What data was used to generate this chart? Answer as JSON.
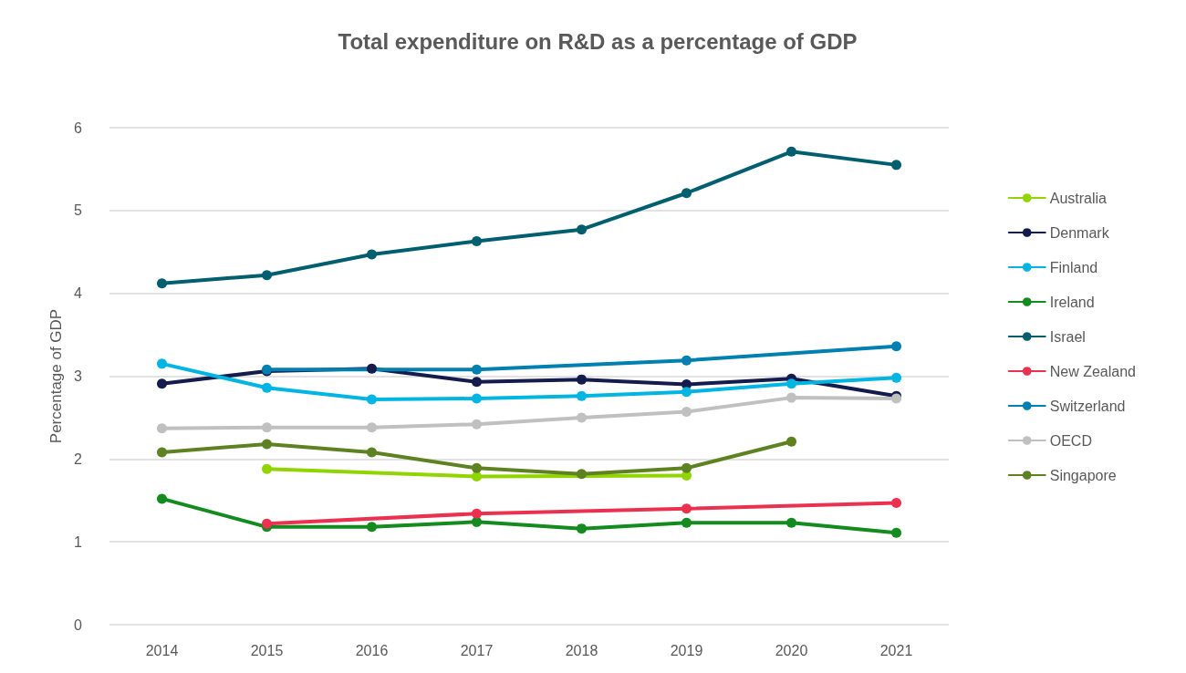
{
  "chart_data": {
    "type": "line",
    "title": "Total expenditure on R&D as a percentage of GDP",
    "ylabel": "Percentage of GDP",
    "categories": [
      "2014",
      "2015",
      "2016",
      "2017",
      "2018",
      "2019",
      "2020",
      "2021"
    ],
    "ylim": [
      0,
      6
    ],
    "yticks": [
      0,
      1,
      2,
      3,
      4,
      5,
      6
    ],
    "grid": "y",
    "legend": "right",
    "marker": "circle",
    "line_style": "solid",
    "series": [
      {
        "name": "Australia",
        "color": "#92d400",
        "values": [
          null,
          1.88,
          null,
          1.79,
          null,
          1.8,
          null,
          null
        ]
      },
      {
        "name": "Denmark",
        "color": "#141b4d",
        "values": [
          2.91,
          3.06,
          3.09,
          2.93,
          2.96,
          2.9,
          2.97,
          2.76
        ]
      },
      {
        "name": "Finland",
        "color": "#00b5e2",
        "values": [
          3.15,
          2.86,
          2.72,
          2.73,
          2.76,
          2.81,
          2.91,
          2.98
        ]
      },
      {
        "name": "Ireland",
        "color": "#138b1f",
        "values": [
          1.52,
          1.18,
          1.18,
          1.24,
          1.16,
          1.23,
          1.23,
          1.11
        ]
      },
      {
        "name": "Israel",
        "color": "#005f6e",
        "values": [
          4.12,
          4.22,
          4.47,
          4.63,
          4.77,
          5.21,
          5.71,
          5.55
        ]
      },
      {
        "name": "New Zealand",
        "color": "#ea3250",
        "values": [
          null,
          1.22,
          null,
          1.34,
          null,
          1.4,
          null,
          1.47
        ]
      },
      {
        "name": "Switzerland",
        "color": "#0080b0",
        "values": [
          null,
          3.08,
          null,
          3.08,
          null,
          3.19,
          null,
          3.36
        ]
      },
      {
        "name": "OECD",
        "color": "#c0c0c0",
        "values": [
          2.37,
          2.38,
          2.38,
          2.42,
          2.5,
          2.57,
          2.74,
          2.73
        ]
      },
      {
        "name": "Singapore",
        "color": "#5e8222",
        "values": [
          2.08,
          2.18,
          2.08,
          1.89,
          1.82,
          1.89,
          2.21,
          null
        ]
      }
    ]
  }
}
